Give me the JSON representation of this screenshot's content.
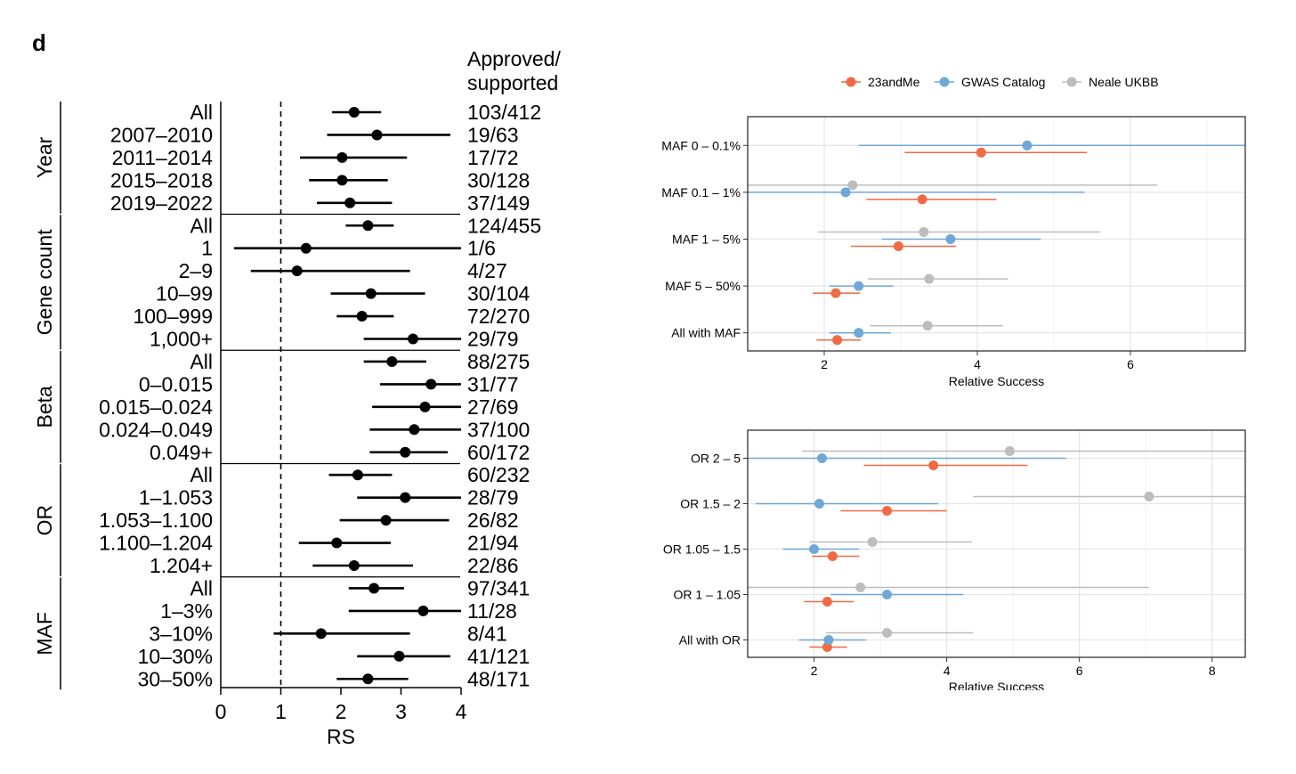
{
  "panel_label": "d",
  "colors": {
    "23andMe": "#ef6a45",
    "GWAS Catalog": "#6fa8d6",
    "Neale UKBB": "#bdbdbd",
    "grid": "#e6e6e6"
  },
  "chart_data": [
    {
      "type": "forest",
      "xlabel": "RS",
      "xlim": [
        0,
        4
      ],
      "xticks": [
        "0",
        "1",
        "2",
        "3",
        "4"
      ],
      "reference_line": 1,
      "count_header": "Approved/\nsupported",
      "groups": [
        {
          "name": "Year",
          "rows": [
            {
              "label": "All",
              "est": 2.22,
              "lo": 1.85,
              "hi": 2.67,
              "count": "103/412"
            },
            {
              "label": "2007–2010",
              "est": 2.6,
              "lo": 1.77,
              "hi": 3.82,
              "count": "19/63"
            },
            {
              "label": "2011–2014",
              "est": 2.02,
              "lo": 1.32,
              "hi": 3.1,
              "count": "17/72"
            },
            {
              "label": "2015–2018",
              "est": 2.02,
              "lo": 1.47,
              "hi": 2.78,
              "count": "30/128"
            },
            {
              "label": "2019–2022",
              "est": 2.15,
              "lo": 1.6,
              "hi": 2.85,
              "count": "37/149"
            }
          ]
        },
        {
          "name": "Gene count",
          "rows": [
            {
              "label": "All",
              "est": 2.45,
              "lo": 2.08,
              "hi": 2.88,
              "count": "124/455"
            },
            {
              "label": "1",
              "est": 1.42,
              "lo": 0.22,
              "hi": 4.0,
              "count": "1/6"
            },
            {
              "label": "2–9",
              "est": 1.27,
              "lo": 0.5,
              "hi": 3.15,
              "count": "4/27"
            },
            {
              "label": "10–99",
              "est": 2.5,
              "lo": 1.83,
              "hi": 3.4,
              "count": "30/104"
            },
            {
              "label": "100–999",
              "est": 2.35,
              "lo": 1.93,
              "hi": 2.88,
              "count": "72/270"
            },
            {
              "label": "1,000+",
              "est": 3.2,
              "lo": 2.38,
              "hi": 4.0,
              "count": "29/79"
            }
          ]
        },
        {
          "name": "Beta",
          "rows": [
            {
              "label": "All",
              "est": 2.85,
              "lo": 2.38,
              "hi": 3.42,
              "count": "88/275"
            },
            {
              "label": "0–0.015",
              "est": 3.5,
              "lo": 2.65,
              "hi": 4.0,
              "count": "31/77"
            },
            {
              "label": "0.015–0.024",
              "est": 3.4,
              "lo": 2.52,
              "hi": 4.0,
              "count": "27/69"
            },
            {
              "label": "0.024–0.049",
              "est": 3.22,
              "lo": 2.48,
              "hi": 4.0,
              "count": "37/100"
            },
            {
              "label": "0.049+",
              "est": 3.07,
              "lo": 2.48,
              "hi": 3.78,
              "count": "60/172"
            }
          ]
        },
        {
          "name": "OR",
          "rows": [
            {
              "label": "All",
              "est": 2.28,
              "lo": 1.8,
              "hi": 2.85,
              "count": "60/232"
            },
            {
              "label": "1–1.053",
              "est": 3.07,
              "lo": 2.27,
              "hi": 4.0,
              "count": "28/79"
            },
            {
              "label": "1.053–1.100",
              "est": 2.75,
              "lo": 1.98,
              "hi": 3.8,
              "count": "26/82"
            },
            {
              "label": "1.100–1.204",
              "est": 1.93,
              "lo": 1.3,
              "hi": 2.83,
              "count": "21/94"
            },
            {
              "label": "1.204+",
              "est": 2.22,
              "lo": 1.53,
              "hi": 3.2,
              "count": "22/86"
            }
          ]
        },
        {
          "name": "MAF",
          "rows": [
            {
              "label": "All",
              "est": 2.55,
              "lo": 2.13,
              "hi": 3.05,
              "count": "97/341"
            },
            {
              "label": "1–3%",
              "est": 3.37,
              "lo": 2.13,
              "hi": 4.0,
              "count": "11/28"
            },
            {
              "label": "3–10%",
              "est": 1.67,
              "lo": 0.88,
              "hi": 3.15,
              "count": "8/41"
            },
            {
              "label": "10–30%",
              "est": 2.97,
              "lo": 2.27,
              "hi": 3.82,
              "count": "41/121"
            },
            {
              "label": "30–50%",
              "est": 2.45,
              "lo": 1.93,
              "hi": 3.12,
              "count": "48/171"
            }
          ]
        }
      ]
    },
    {
      "type": "forest-multiseries",
      "xlabel": "Relative Success",
      "xlim": [
        1.0,
        7.5
      ],
      "xticks": [
        2,
        4,
        6
      ],
      "grid": true,
      "legend": {
        "position": "top",
        "entries": [
          "23andMe",
          "GWAS Catalog",
          "Neale UKBB"
        ]
      },
      "categories": [
        "MAF 0 – 0.1%",
        "MAF 0.1 – 1%",
        "MAF 1 – 5%",
        "MAF 5 – 50%",
        "All with MAF"
      ],
      "series": [
        {
          "name": "23andMe",
          "points": [
            {
              "est": 4.05,
              "lo": 3.05,
              "hi": 5.43
            },
            {
              "est": 3.28,
              "lo": 2.55,
              "hi": 4.25
            },
            {
              "est": 2.97,
              "lo": 2.35,
              "hi": 3.72
            },
            {
              "est": 2.15,
              "lo": 1.85,
              "hi": 2.47
            },
            {
              "est": 2.17,
              "lo": 1.9,
              "hi": 2.48
            }
          ]
        },
        {
          "name": "GWAS Catalog",
          "points": [
            {
              "est": 4.65,
              "lo": 2.45,
              "hi": 7.5
            },
            {
              "est": 2.28,
              "lo": 1.0,
              "hi": 5.4
            },
            {
              "est": 3.65,
              "lo": 2.75,
              "hi": 4.83
            },
            {
              "est": 2.45,
              "lo": 2.07,
              "hi": 2.9
            },
            {
              "est": 2.45,
              "lo": 2.07,
              "hi": 2.87
            }
          ]
        },
        {
          "name": "Neale UKBB",
          "points": [
            null,
            {
              "est": 2.37,
              "lo": 1.0,
              "hi": 6.35
            },
            {
              "est": 3.3,
              "lo": 1.92,
              "hi": 5.6
            },
            {
              "est": 3.37,
              "lo": 2.57,
              "hi": 4.4
            },
            {
              "est": 3.35,
              "lo": 2.6,
              "hi": 4.33
            }
          ]
        }
      ]
    },
    {
      "type": "forest-multiseries",
      "xlabel": "Relative Success",
      "xlim": [
        1.0,
        8.5
      ],
      "xticks": [
        2,
        4,
        6,
        8
      ],
      "grid": true,
      "categories": [
        "OR 2 – 5",
        "OR 1.5 – 2",
        "OR 1.05 – 1.5",
        "OR 1 – 1.05",
        "All with OR"
      ],
      "series": [
        {
          "name": "23andMe",
          "points": [
            {
              "est": 3.8,
              "lo": 2.75,
              "hi": 5.22
            },
            {
              "est": 3.1,
              "lo": 2.4,
              "hi": 4.0
            },
            {
              "est": 2.28,
              "lo": 1.97,
              "hi": 2.68
            },
            {
              "est": 2.2,
              "lo": 1.85,
              "hi": 2.6
            },
            {
              "est": 2.2,
              "lo": 1.93,
              "hi": 2.5
            }
          ]
        },
        {
          "name": "GWAS Catalog",
          "points": [
            {
              "est": 2.12,
              "lo": 1.0,
              "hi": 5.8
            },
            {
              "est": 2.08,
              "lo": 1.12,
              "hi": 3.87
            },
            {
              "est": 2.0,
              "lo": 1.53,
              "hi": 2.68
            },
            {
              "est": 3.1,
              "lo": 2.25,
              "hi": 4.25
            },
            {
              "est": 2.22,
              "lo": 1.77,
              "hi": 2.78
            }
          ]
        },
        {
          "name": "Neale UKBB",
          "points": [
            {
              "est": 4.95,
              "lo": 1.82,
              "hi": 8.5
            },
            {
              "est": 7.05,
              "lo": 4.4,
              "hi": 8.5
            },
            {
              "est": 2.88,
              "lo": 1.93,
              "hi": 4.38
            },
            {
              "est": 2.7,
              "lo": 1.0,
              "hi": 7.05
            },
            {
              "est": 3.1,
              "lo": 2.18,
              "hi": 4.4
            }
          ]
        }
      ]
    }
  ]
}
